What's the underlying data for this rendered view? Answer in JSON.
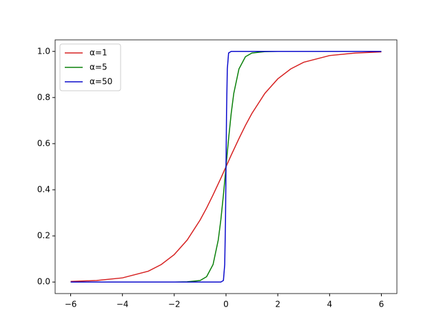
{
  "chart_data": {
    "type": "line",
    "x": [
      -6,
      -5,
      -4,
      -3,
      -2.5,
      -2,
      -1.5,
      -1,
      -0.75,
      -0.5,
      -0.3,
      -0.2,
      -0.1,
      -0.05,
      -0.02,
      0,
      0.02,
      0.05,
      0.1,
      0.2,
      0.3,
      0.5,
      0.75,
      1,
      1.5,
      2,
      2.5,
      3,
      4,
      5,
      6
    ],
    "series": [
      {
        "name": "α=1",
        "color": "#d62020",
        "values": [
          0.0025,
          0.0067,
          0.018,
          0.047,
          0.076,
          0.119,
          0.182,
          0.269,
          0.321,
          0.378,
          0.426,
          0.45,
          0.475,
          0.488,
          0.495,
          0.5,
          0.505,
          0.512,
          0.525,
          0.55,
          0.574,
          0.622,
          0.679,
          0.731,
          0.818,
          0.881,
          0.924,
          0.953,
          0.982,
          0.993,
          0.998
        ]
      },
      {
        "name": "α=5",
        "color": "#0a800a",
        "values": [
          0,
          0,
          0,
          0,
          0,
          0,
          0.001,
          0.0067,
          0.023,
          0.076,
          0.182,
          0.269,
          0.378,
          0.438,
          0.475,
          0.5,
          0.525,
          0.562,
          0.622,
          0.731,
          0.818,
          0.924,
          0.977,
          0.993,
          0.999,
          1,
          1,
          1,
          1,
          1,
          1
        ]
      },
      {
        "name": "α=50",
        "color": "#0a0acc",
        "values": [
          0,
          0,
          0,
          0,
          0,
          0,
          0,
          0,
          0,
          0,
          0,
          0,
          0.0067,
          0.076,
          0.269,
          0.5,
          0.731,
          0.924,
          0.993,
          1,
          1,
          1,
          1,
          1,
          1,
          1,
          1,
          1,
          1,
          1,
          1
        ]
      }
    ],
    "xlim": [
      -6.6,
      6.6
    ],
    "ylim": [
      -0.05,
      1.05
    ],
    "xticks": [
      {
        "value": -6,
        "label": "−6"
      },
      {
        "value": -4,
        "label": "−4"
      },
      {
        "value": -2,
        "label": "−2"
      },
      0,
      2,
      4,
      6
    ],
    "yticks": [
      {
        "value": 0,
        "label": "0.0"
      },
      {
        "value": 0.2,
        "label": "0.2"
      },
      {
        "value": 0.4,
        "label": "0.4"
      },
      {
        "value": 0.6,
        "label": "0.6"
      },
      {
        "value": 0.8,
        "label": "0.8"
      },
      {
        "value": 1,
        "label": "1.0"
      }
    ],
    "legend": "upper left"
  }
}
